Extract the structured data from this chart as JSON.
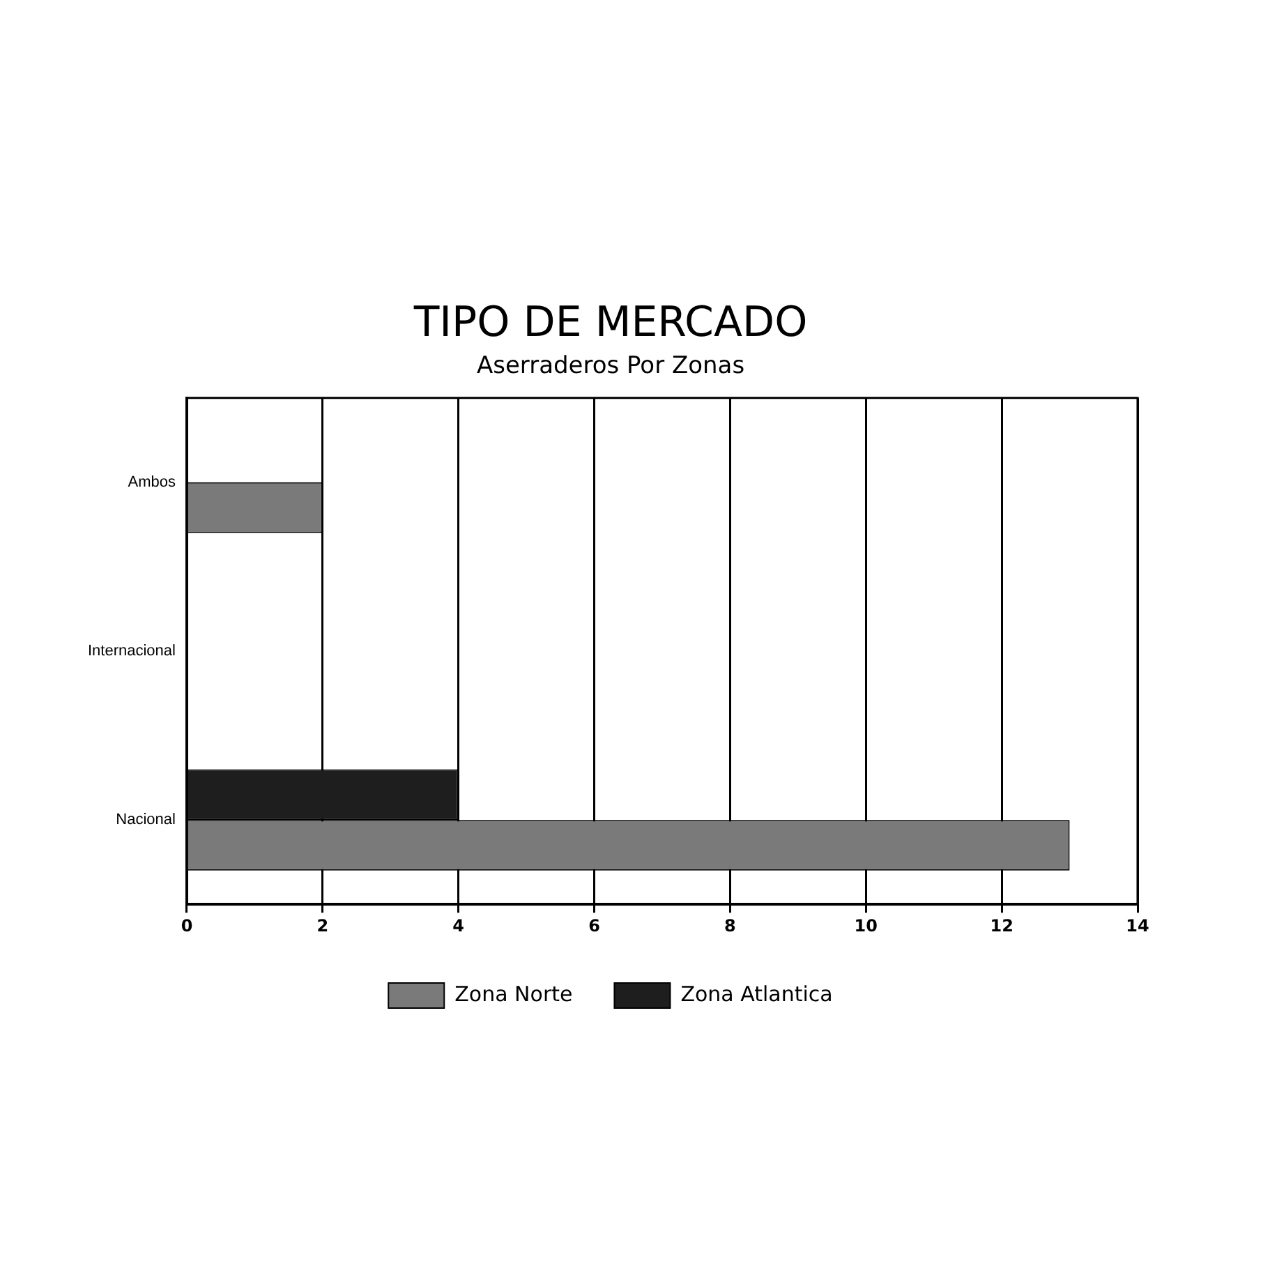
{
  "chart_data": {
    "type": "bar",
    "orientation": "horizontal",
    "title": "TIPO DE MERCADO",
    "subtitle": "Aserraderos Por Zonas",
    "categories": [
      "Ambos",
      "Internacional",
      "Nacional"
    ],
    "series": [
      {
        "name": "Zona Norte",
        "color": "#7a7a7a",
        "values": [
          2,
          0,
          13
        ]
      },
      {
        "name": "Zona Atlantica",
        "color": "#1e1e1e",
        "values": [
          0,
          0,
          4
        ]
      }
    ],
    "xlim": [
      0,
      14
    ],
    "xticks": [
      0,
      2,
      4,
      6,
      8,
      10,
      12,
      14
    ],
    "grid": "x",
    "legend": "bottom"
  }
}
